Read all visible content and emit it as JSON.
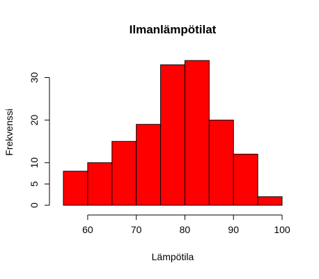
{
  "chart_data": {
    "type": "bar",
    "title": "Ilmanlämpötilat",
    "xlabel": "Lämpötila",
    "ylabel": "Frekvenssi",
    "bin_edges": [
      55,
      60,
      65,
      70,
      75,
      80,
      85,
      90,
      95,
      100
    ],
    "values": [
      8,
      10,
      15,
      19,
      33,
      34,
      20,
      12,
      2
    ],
    "xlim": [
      55,
      100
    ],
    "ylim": [
      0,
      34
    ],
    "x_ticks": [
      60,
      70,
      80,
      90,
      100
    ],
    "y_ticks": [
      0,
      5,
      10,
      20,
      30
    ],
    "bar_color": "#ff0000",
    "border_color": "#000000",
    "grid": false
  }
}
